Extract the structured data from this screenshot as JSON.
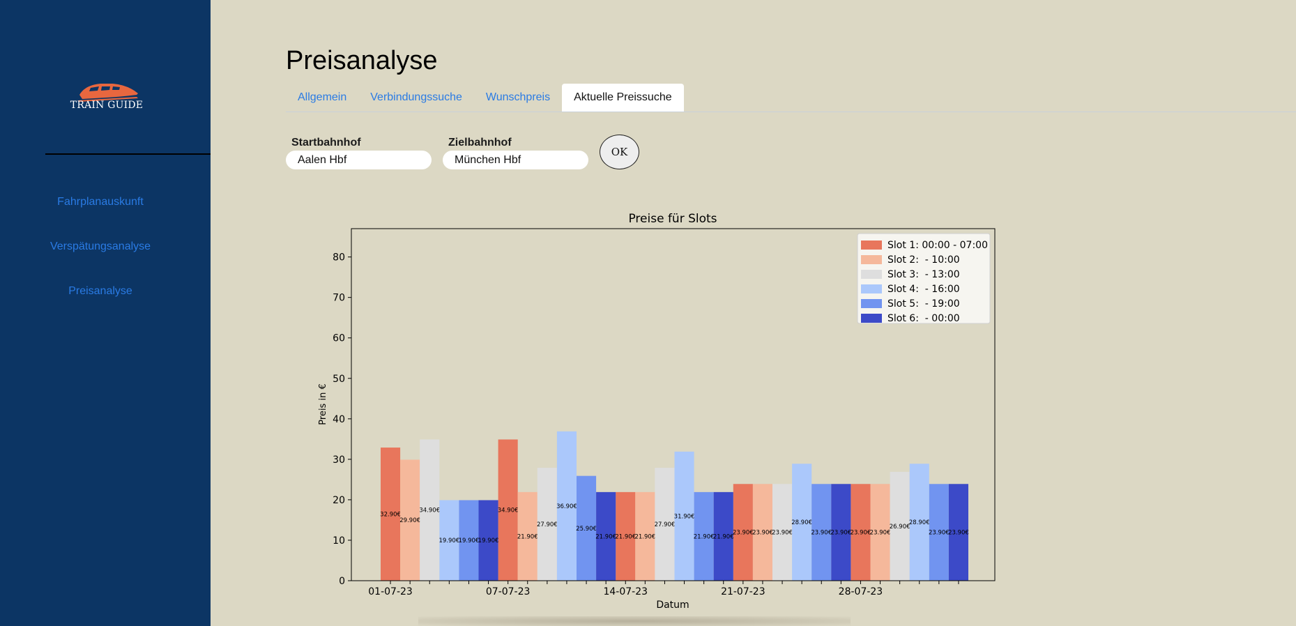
{
  "app": {
    "logo_text": "TRAIN GUIDE",
    "logo_color": "#e8673f"
  },
  "sidebar": {
    "items": [
      {
        "label": "Fahrplanauskunft"
      },
      {
        "label": "Verspätungsanalyse"
      },
      {
        "label": "Preisanalyse"
      }
    ]
  },
  "page": {
    "title": "Preisanalyse",
    "tabs": [
      {
        "label": "Allgemein",
        "active": false
      },
      {
        "label": "Verbindungssuche",
        "active": false
      },
      {
        "label": "Wunschpreis",
        "active": false
      },
      {
        "label": "Aktuelle Preissuche",
        "active": true
      }
    ]
  },
  "form": {
    "start_label": "Startbahnhof",
    "start_value": "Aalen Hbf",
    "ziel_label": "Zielbahnhof",
    "ziel_value": "München Hbf",
    "ok_label": "OK"
  },
  "chart_data": {
    "type": "bar",
    "title": "Preise für Slots",
    "xlabel": "Datum",
    "ylabel": "Preis in €",
    "ylim": [
      0,
      87
    ],
    "yticks": [
      0,
      10,
      20,
      30,
      40,
      50,
      60,
      70,
      80
    ],
    "categories": [
      "01-07-23",
      "07-07-23",
      "14-07-23",
      "21-07-23",
      "28-07-23"
    ],
    "legend_position": "top-right",
    "series": [
      {
        "name": "Slot 1: 00:00 - 07:00",
        "color": "#e8765c",
        "values": [
          32.9,
          34.9,
          21.9,
          23.9,
          23.9
        ]
      },
      {
        "name": "Slot 2:  - 10:00",
        "color": "#f5b89b",
        "values": [
          29.9,
          21.9,
          21.9,
          23.9,
          23.9
        ]
      },
      {
        "name": "Slot 3:  - 13:00",
        "color": "#dedede",
        "values": [
          34.9,
          27.9,
          27.9,
          23.9,
          26.9
        ]
      },
      {
        "name": "Slot 4:  - 16:00",
        "color": "#abc8fb",
        "values": [
          19.9,
          36.9,
          31.9,
          28.9,
          28.9
        ]
      },
      {
        "name": "Slot 5:  - 19:00",
        "color": "#7194f0",
        "values": [
          19.9,
          25.9,
          21.9,
          23.9,
          23.9
        ]
      },
      {
        "name": "Slot 6:  - 00:00",
        "color": "#3c4ac8",
        "values": [
          19.9,
          21.9,
          21.9,
          23.9,
          23.9
        ]
      }
    ],
    "labels": [
      [
        "32.90€",
        "34.90€",
        "21.90€",
        "23.90€",
        "23.90€"
      ],
      [
        "29.90€",
        "21.90€",
        "21.90€",
        "23.90€",
        "23.90€"
      ],
      [
        "34.90€",
        "27.90€",
        "27.90€",
        "23.90€",
        "26.90€"
      ],
      [
        "19.90€",
        "36.90€",
        "31.90€",
        "28.90€",
        "28.90€"
      ],
      [
        "19.90€",
        "25.90€",
        "21.90€",
        "23.90€",
        "23.90€"
      ],
      [
        "19.90€",
        "21.90€",
        "21.90€",
        "23.90€",
        "23.90€"
      ]
    ]
  }
}
